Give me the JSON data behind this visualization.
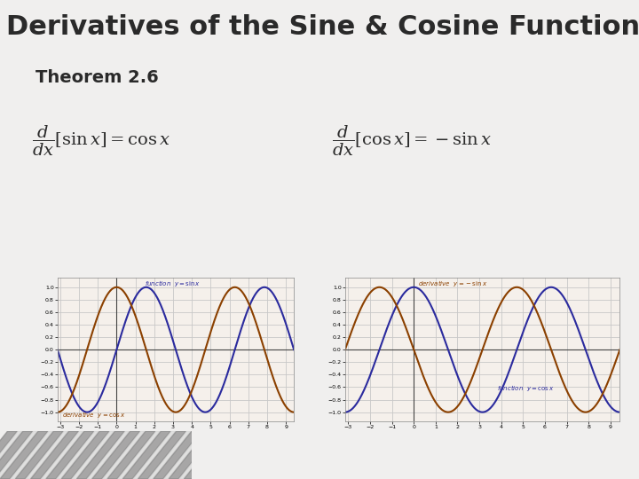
{
  "title": "Derivatives of the Sine & Cosine Functions",
  "theorem": "Theorem 2.6",
  "title_color": "#2a2a2a",
  "title_fontsize": 22,
  "theorem_fontsize": 14,
  "bg_color": "#f0efee",
  "plot_bg": "#f5f0eb",
  "grid_color": "#c8c8c8",
  "sine_color": "#2b2b9e",
  "deriv_color": "#8B4000",
  "x_range": [
    -3.14159,
    9.42478
  ],
  "y_range": [
    -1.15,
    1.15
  ]
}
